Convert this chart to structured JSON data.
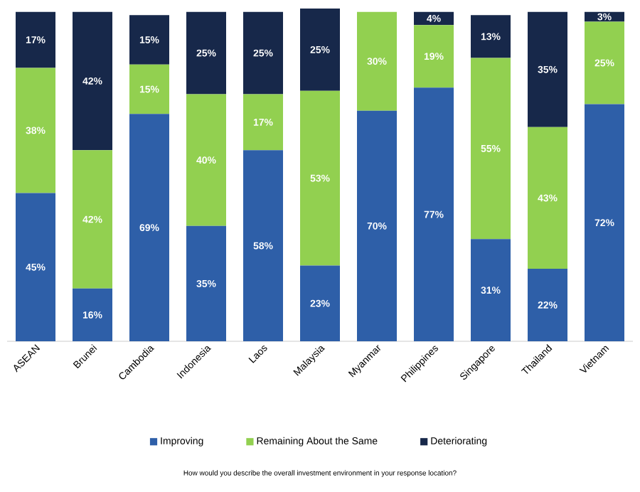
{
  "chart_data": {
    "type": "bar",
    "stacked": true,
    "categories": [
      "ASEAN",
      "Brunei",
      "Cambodia",
      "Indonesia",
      "Laos",
      "Malaysia",
      "Myanmar",
      "Philippines",
      "Singapore",
      "Thailand",
      "Vietnam"
    ],
    "series": [
      {
        "name": "Improving",
        "color": "#2e5fa8",
        "values": [
          45,
          16,
          69,
          35,
          58,
          23,
          70,
          77,
          31,
          22,
          72
        ],
        "value_labels": [
          "45%",
          "16%",
          "69%",
          "35%",
          "58%",
          "23%",
          "70%",
          "77%",
          "31%",
          "22%",
          "72%"
        ]
      },
      {
        "name": "Remaining About the Same",
        "color": "#92d050",
        "values": [
          38,
          42,
          15,
          40,
          17,
          53,
          30,
          19,
          55,
          43,
          25
        ],
        "value_labels": [
          "38%",
          "42%",
          "15%",
          "40%",
          "17%",
          "53%",
          "30%",
          "19%",
          "55%",
          "43%",
          "25%"
        ]
      },
      {
        "name": "Deteriorating",
        "color": "#17284a",
        "values": [
          17,
          42,
          15,
          25,
          25,
          25,
          0,
          4,
          13,
          35,
          3
        ],
        "value_labels": [
          "17%",
          "42%",
          "15%",
          "25%",
          "25%",
          "25%",
          null,
          "4%",
          "13%",
          "35%",
          "3%"
        ]
      }
    ],
    "legend": "bottom",
    "annotations": [
      "How would you describe the overall investment environment in your response location?"
    ]
  }
}
